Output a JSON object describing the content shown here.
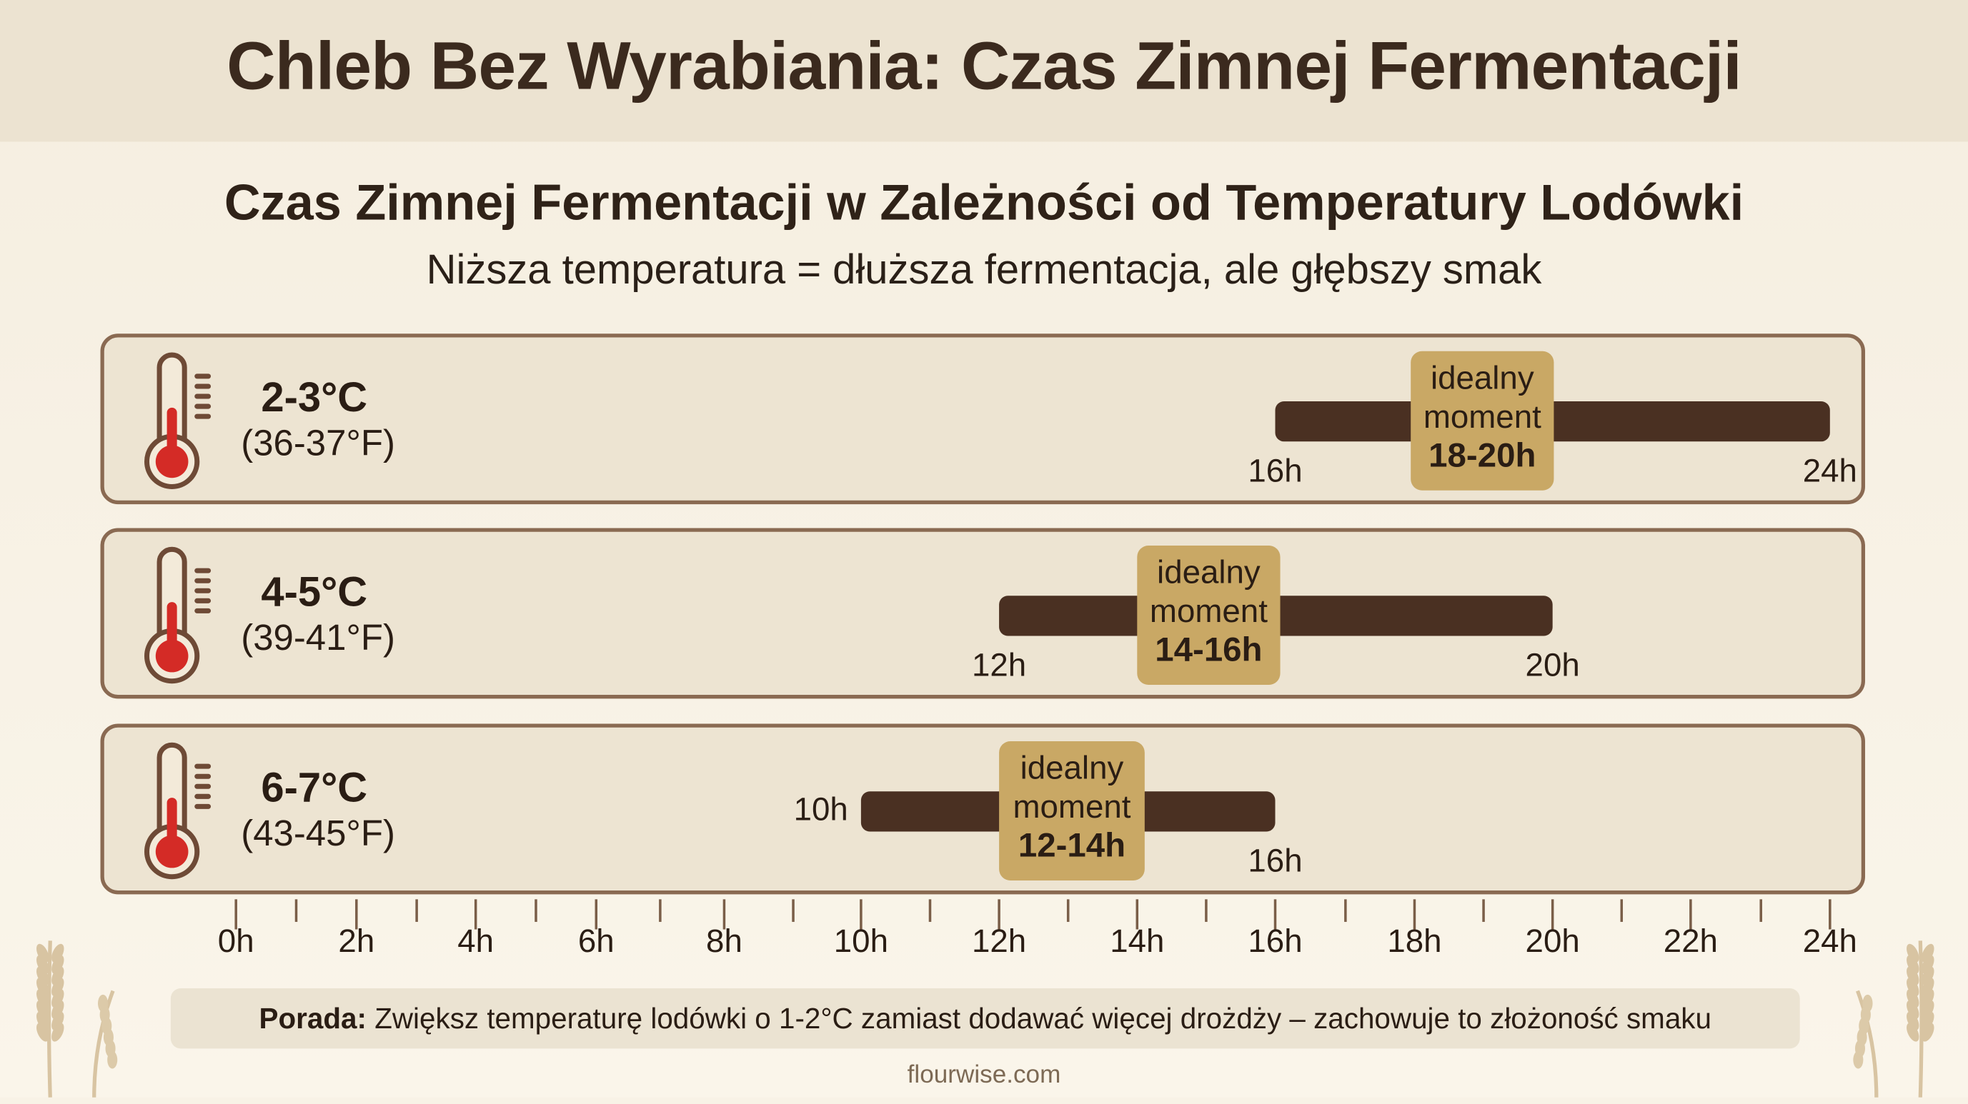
{
  "title": "Chleb Bez Wyrabiania: Czas Zimnej Fermentacji",
  "chart_data": {
    "type": "range-bar",
    "title": "Czas Zimnej Fermentacji w Zależności od Temperatury Lodówki",
    "subtitle": "Niższa temperatura = dłuższa fermentacja, ale głębszy smak",
    "xlabel": "",
    "ylabel": "",
    "xlim": [
      0,
      24
    ],
    "x_ticks": [
      "0h",
      "2h",
      "4h",
      "6h",
      "8h",
      "10h",
      "12h",
      "14h",
      "16h",
      "18h",
      "20h",
      "22h",
      "24h"
    ],
    "rows": [
      {
        "temp_c": "2-3°C",
        "temp_f": "(36-37°F)",
        "start": 16,
        "end": 24,
        "start_label": "16h",
        "end_label": "24h",
        "ideal_label": "idealny moment",
        "ideal_range": "18-20h",
        "ideal_start": 18,
        "ideal_end": 20
      },
      {
        "temp_c": "4-5°C",
        "temp_f": "(39-41°F)",
        "start": 12,
        "end": 20,
        "start_label": "12h",
        "end_label": "20h",
        "ideal_label": "idealny moment",
        "ideal_range": "14-16h",
        "ideal_start": 14,
        "ideal_end": 16
      },
      {
        "temp_c": "6-7°C",
        "temp_f": "(43-45°F)",
        "start": 10,
        "end": 16,
        "start_label": "10h",
        "end_label": "16h",
        "ideal_label": "idealny moment",
        "ideal_range": "12-14h",
        "ideal_start": 12,
        "ideal_end": 14
      }
    ],
    "colors": {
      "bar": "#4a3022",
      "ideal": "#c9a865",
      "thermometer": "#d42b26"
    }
  },
  "tip": {
    "label": "Porada:",
    "text": " Zwiększ temperaturę lodówki o 1-2°C zamiast dodawać więcej drożdży – zachowuje to złożoność smaku"
  },
  "footer": "flourwise.com"
}
